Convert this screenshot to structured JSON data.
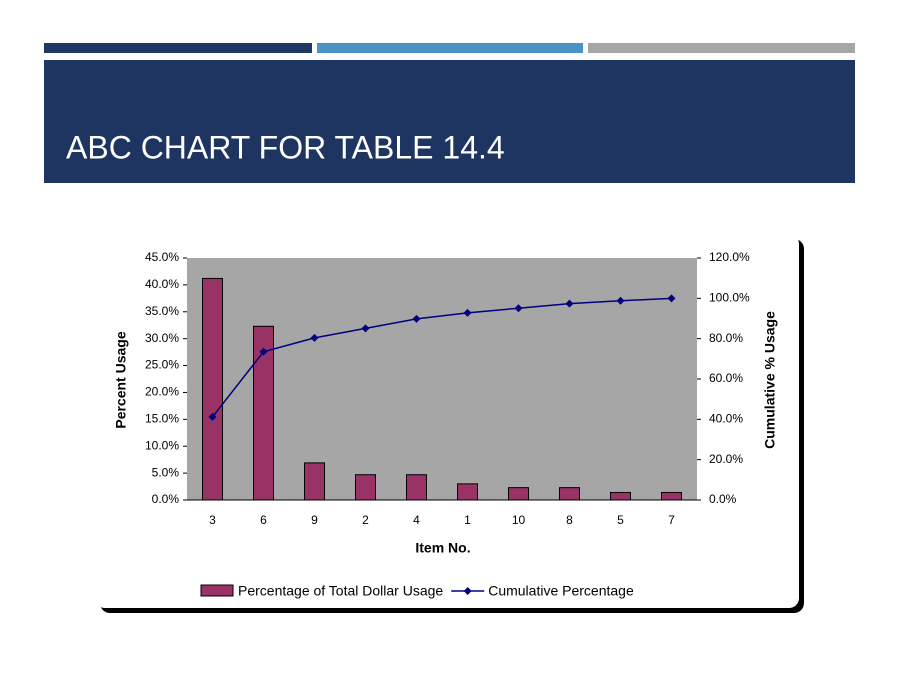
{
  "chart_data": {
    "type": "bar",
    "title": "ABC CHART FOR TABLE 14.4",
    "x_label": "Item No.",
    "y_label": "Percent Usage",
    "y2_label": "Cumulative % Usage",
    "categories": [
      "3",
      "6",
      "9",
      "2",
      "4",
      "1",
      "10",
      "8",
      "5",
      "7"
    ],
    "series": [
      {
        "name": "Percentage of Total Dollar Usage",
        "type": "bar",
        "color": "#993366",
        "values": [
          41.2,
          32.3,
          6.9,
          4.7,
          4.7,
          3.0,
          2.3,
          2.3,
          1.4,
          1.4
        ]
      },
      {
        "name": "Cumulative Percentage",
        "type": "line",
        "axis": "y2",
        "color": "#000080",
        "values": [
          41.2,
          73.5,
          80.4,
          85.1,
          89.8,
          92.8,
          95.1,
          97.4,
          98.8,
          100.0
        ]
      }
    ],
    "ylim": [
      0,
      45
    ],
    "yticks": [
      {
        "value": 0,
        "label": "0.0%"
      },
      {
        "value": 5,
        "label": "5.0%"
      },
      {
        "value": 10,
        "label": "10.0%"
      },
      {
        "value": 15,
        "label": "15.0%"
      },
      {
        "value": 20,
        "label": "20.0%"
      },
      {
        "value": 25,
        "label": "25.0%"
      },
      {
        "value": 30,
        "label": "30.0%"
      },
      {
        "value": 35,
        "label": "35.0%"
      },
      {
        "value": 40,
        "label": "40.0%"
      },
      {
        "value": 45,
        "label": "45.0%"
      }
    ],
    "y2lim": [
      0,
      120
    ],
    "y2ticks": [
      {
        "value": 0,
        "label": "0.0%"
      },
      {
        "value": 20,
        "label": "20.0%"
      },
      {
        "value": 40,
        "label": "40.0%"
      },
      {
        "value": 60,
        "label": "60.0%"
      },
      {
        "value": 80,
        "label": "80.0%"
      },
      {
        "value": 100,
        "label": "100.0%"
      },
      {
        "value": 120,
        "label": "120.0%"
      }
    ],
    "plot_background": "#a6a6a6",
    "legend": "bottom"
  }
}
